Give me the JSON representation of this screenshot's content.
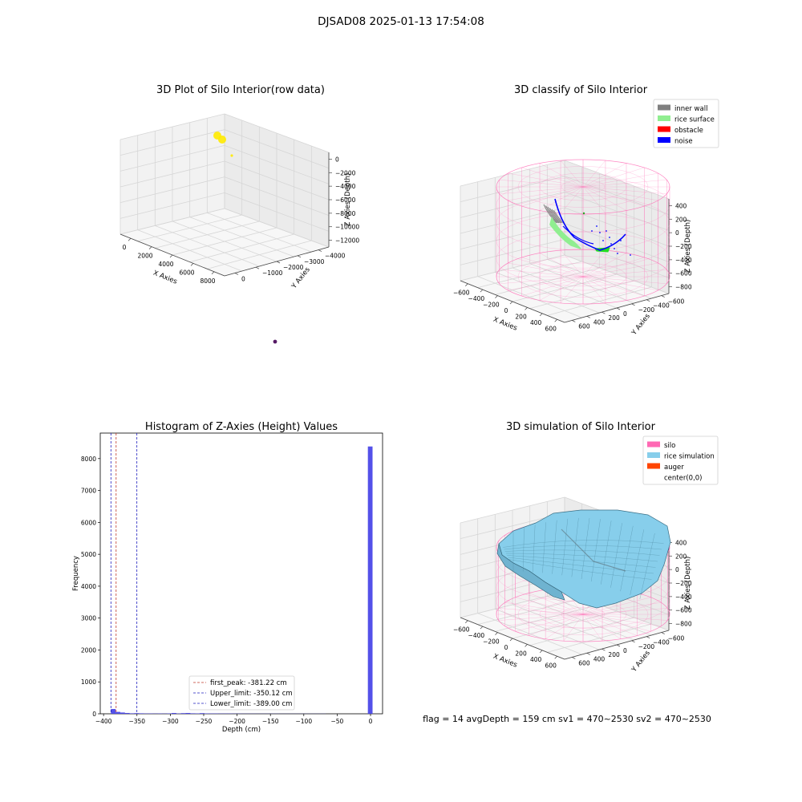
{
  "figure": {
    "title": "DJSAD08 2025-01-13 17:54:08",
    "status_line": "flag = 14   avgDepth = 159 cm   sv1 = 470~2530  sv2 = 470~2530"
  },
  "colors": {
    "inner_wall": "#808080",
    "rice_surface": "#90ee90",
    "obstacle": "#ff0000",
    "noise": "#0000ff",
    "silo": "#ff69b4",
    "rice_simulation": "#87ceeb",
    "auger": "#ff4500",
    "hist_bar": "#4b48e8",
    "peak_line": "#c0392b",
    "limit_line": "#1f1fbf"
  },
  "chart_data": [
    {
      "type": "scatter",
      "subtype": "3d",
      "title": "3D Plot of Silo Interior(row data)",
      "xlabel": "X Axies",
      "ylabel": "Y Axies",
      "zlabel": "Z Axies (Depth)",
      "x_ticks": [
        "0",
        "2000",
        "4000",
        "6000",
        "8000"
      ],
      "y_ticks": [
        "0",
        "−1000",
        "−2000",
        "−3000",
        "−4000"
      ],
      "z_ticks": [
        "0",
        "−2000",
        "−4000",
        "−6000",
        "−8000",
        "−10000",
        "−12000"
      ],
      "xlim": [
        -1000,
        9000
      ],
      "ylim": [
        -4200,
        300
      ],
      "zlim": [
        -13000,
        500
      ],
      "points": [
        {
          "x": 100,
          "y": -50,
          "z": 0,
          "color": "#ffea00",
          "size": "large"
        },
        {
          "x": 300,
          "y": -80,
          "z": -200,
          "color": "#ffea00",
          "size": "large"
        },
        {
          "x": 800,
          "y": -150,
          "z": -1200,
          "color": "#ffea00",
          "size": "small"
        },
        {
          "x": 8200,
          "y": -3500,
          "z": -12500,
          "color": "#440154",
          "size": "medium"
        }
      ],
      "grid": true
    },
    {
      "type": "scatter",
      "subtype": "3d",
      "title": "3D classify of Silo Interior",
      "xlabel": "X Axies",
      "ylabel": "Y Axies",
      "zlabel": "Z Axies (Depth)",
      "x_ticks": [
        "−600",
        "−400",
        "−200",
        "0",
        "200",
        "400",
        "600"
      ],
      "y_ticks": [
        "600",
        "400",
        "200",
        "0",
        "−200",
        "−400",
        "−600"
      ],
      "z_ticks": [
        "400",
        "200",
        "0",
        "−200",
        "−400",
        "−600",
        "−800"
      ],
      "xlim": [
        -650,
        650
      ],
      "ylim": [
        -650,
        650
      ],
      "zlim": [
        -950,
        450
      ],
      "legend": [
        "inner wall",
        "rice surface",
        "obstacle",
        "noise"
      ],
      "legend_position": "upper-right",
      "grid": true
    },
    {
      "type": "bar",
      "subtype": "histogram",
      "title": "Histogram of Z-Axies (Height) Values",
      "xlabel": "Depth (cm)",
      "ylabel": "Frequency",
      "xlim": [
        -405,
        18
      ],
      "ylim": [
        0,
        8800
      ],
      "x_ticks": [
        -400,
        -350,
        -300,
        -250,
        -200,
        -150,
        -100,
        -50,
        0
      ],
      "y_ticks": [
        0,
        1000,
        2000,
        3000,
        4000,
        5000,
        6000,
        7000,
        8000
      ],
      "bin_width": 7,
      "bins": [
        {
          "x0": -389,
          "count": 150
        },
        {
          "x0": -382,
          "count": 60
        },
        {
          "x0": -375,
          "count": 40
        },
        {
          "x0": -368,
          "count": 25
        },
        {
          "x0": -361,
          "count": 15
        },
        {
          "x0": -354,
          "count": 20
        },
        {
          "x0": -347,
          "count": 15
        },
        {
          "x0": -340,
          "count": 10
        },
        {
          "x0": -333,
          "count": 10
        },
        {
          "x0": -326,
          "count": 8
        },
        {
          "x0": -319,
          "count": 10
        },
        {
          "x0": -312,
          "count": 8
        },
        {
          "x0": -305,
          "count": 12
        },
        {
          "x0": -298,
          "count": 25
        },
        {
          "x0": -291,
          "count": 10
        },
        {
          "x0": -284,
          "count": 20
        },
        {
          "x0": -277,
          "count": 25
        },
        {
          "x0": -270,
          "count": 15
        },
        {
          "x0": -263,
          "count": 12
        },
        {
          "x0": -256,
          "count": 20
        },
        {
          "x0": -249,
          "count": 12
        },
        {
          "x0": -242,
          "count": 10
        },
        {
          "x0": -235,
          "count": 10
        },
        {
          "x0": -228,
          "count": 8
        },
        {
          "x0": -221,
          "count": 8
        },
        {
          "x0": -214,
          "count": 8
        },
        {
          "x0": -207,
          "count": 6
        },
        {
          "x0": -200,
          "count": 6
        },
        {
          "x0": -193,
          "count": 5
        },
        {
          "x0": -186,
          "count": 5
        },
        {
          "x0": -179,
          "count": 5
        },
        {
          "x0": -172,
          "count": 4
        },
        {
          "x0": -165,
          "count": 4
        },
        {
          "x0": -158,
          "count": 4
        },
        {
          "x0": -151,
          "count": 4
        },
        {
          "x0": -144,
          "count": 4
        },
        {
          "x0": -137,
          "count": 3
        },
        {
          "x0": -130,
          "count": 3
        },
        {
          "x0": -123,
          "count": 3
        },
        {
          "x0": -116,
          "count": 3
        },
        {
          "x0": -109,
          "count": 3
        },
        {
          "x0": -102,
          "count": 3
        },
        {
          "x0": -95,
          "count": 3
        },
        {
          "x0": -88,
          "count": 3
        },
        {
          "x0": -81,
          "count": 3
        },
        {
          "x0": -74,
          "count": 3
        },
        {
          "x0": -4,
          "count": 8380
        }
      ],
      "vlines": [
        {
          "name": "first_peak",
          "value": -381.22,
          "label": "first_peak: -381.22 cm",
          "style": "peak"
        },
        {
          "name": "Upper_limit",
          "value": -350.12,
          "label": "Upper_limit: -350.12 cm",
          "style": "limit"
        },
        {
          "name": "Lower_limit",
          "value": -389.0,
          "label": "Lower_limit: -389.00 cm",
          "style": "limit"
        }
      ],
      "legend_position": "lower-center"
    },
    {
      "type": "area",
      "subtype": "3d-surface",
      "title": "3D simulation of Silo Interior",
      "xlabel": "X Axies",
      "ylabel": "Y Axies",
      "zlabel": "Z Axies (Depth)",
      "x_ticks": [
        "−600",
        "−400",
        "−200",
        "0",
        "200",
        "400",
        "600"
      ],
      "y_ticks": [
        "600",
        "400",
        "200",
        "0",
        "−200",
        "−400",
        "−600"
      ],
      "z_ticks": [
        "400",
        "200",
        "0",
        "−200",
        "−400",
        "−600",
        "−800"
      ],
      "xlim": [
        -650,
        650
      ],
      "ylim": [
        -650,
        650
      ],
      "zlim": [
        -950,
        450
      ],
      "legend": [
        "silo",
        "rice simulation",
        "auger",
        "center(0,0)"
      ],
      "legend_position": "upper-right",
      "grid": true
    }
  ]
}
